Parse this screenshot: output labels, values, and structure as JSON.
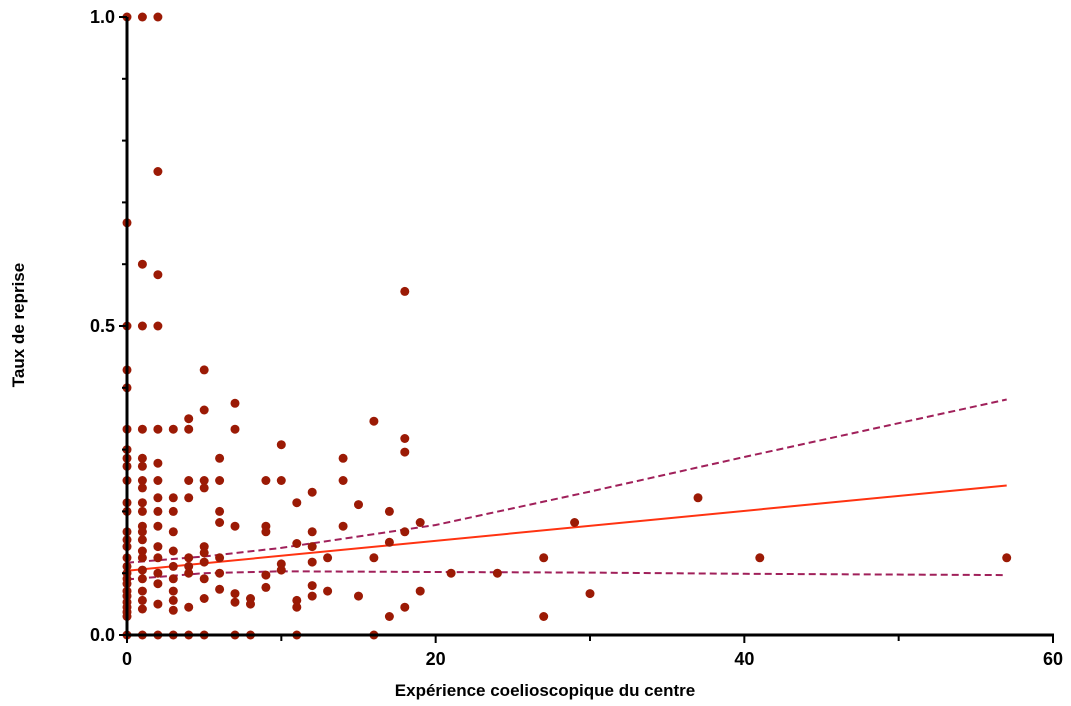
{
  "chart_data": {
    "type": "scatter",
    "title": "",
    "xlabel": "Expérience coelioscopique du centre",
    "ylabel": "Taux de reprise",
    "xlim": [
      0,
      60
    ],
    "ylim": [
      0,
      1.0
    ],
    "x_ticks": [
      "0",
      "20",
      "40",
      "60"
    ],
    "y_ticks": [
      "0.0",
      "0.5",
      "1.0"
    ],
    "grid": false,
    "legend": "none",
    "colors": {
      "points": "#9b1a05",
      "fit": "#ff3311",
      "ci": "#a0205a",
      "axis": "#000000"
    },
    "points": [
      [
        0,
        1.0
      ],
      [
        1,
        1.0
      ],
      [
        2,
        1.0
      ],
      [
        2,
        0.75
      ],
      [
        0,
        0.667
      ],
      [
        1,
        0.6
      ],
      [
        2,
        0.583
      ],
      [
        18,
        0.556
      ],
      [
        0,
        0.5
      ],
      [
        1,
        0.5
      ],
      [
        2,
        0.5
      ],
      [
        0,
        0.429
      ],
      [
        0,
        0.4
      ],
      [
        5,
        0.429
      ],
      [
        5,
        0.364
      ],
      [
        7,
        0.375
      ],
      [
        4,
        0.35
      ],
      [
        16,
        0.346
      ],
      [
        0,
        0.333
      ],
      [
        1,
        0.333
      ],
      [
        2,
        0.333
      ],
      [
        3,
        0.333
      ],
      [
        4,
        0.333
      ],
      [
        7,
        0.333
      ],
      [
        18,
        0.318
      ],
      [
        10,
        0.308
      ],
      [
        0,
        0.3
      ],
      [
        18,
        0.296
      ],
      [
        0,
        0.286
      ],
      [
        1,
        0.286
      ],
      [
        2,
        0.278
      ],
      [
        6,
        0.286
      ],
      [
        14,
        0.286
      ],
      [
        0,
        0.273
      ],
      [
        1,
        0.273
      ],
      [
        0,
        0.25
      ],
      [
        1,
        0.25
      ],
      [
        2,
        0.25
      ],
      [
        4,
        0.25
      ],
      [
        5,
        0.25
      ],
      [
        6,
        0.25
      ],
      [
        9,
        0.25
      ],
      [
        10,
        0.25
      ],
      [
        14,
        0.25
      ],
      [
        5,
        0.238
      ],
      [
        1,
        0.238
      ],
      [
        12,
        0.231
      ],
      [
        3,
        0.222
      ],
      [
        4,
        0.222
      ],
      [
        2,
        0.222
      ],
      [
        37,
        0.222
      ],
      [
        11,
        0.214
      ],
      [
        0,
        0.214
      ],
      [
        1,
        0.214
      ],
      [
        15,
        0.211
      ],
      [
        0,
        0.2
      ],
      [
        1,
        0.2
      ],
      [
        2,
        0.2
      ],
      [
        3,
        0.2
      ],
      [
        6,
        0.2
      ],
      [
        17,
        0.2
      ],
      [
        19,
        0.182
      ],
      [
        29,
        0.182
      ],
      [
        6,
        0.182
      ],
      [
        1,
        0.176
      ],
      [
        2,
        0.176
      ],
      [
        7,
        0.176
      ],
      [
        9,
        0.176
      ],
      [
        14,
        0.176
      ],
      [
        9,
        0.167
      ],
      [
        18,
        0.167
      ],
      [
        0,
        0.167
      ],
      [
        1,
        0.167
      ],
      [
        3,
        0.167
      ],
      [
        12,
        0.167
      ],
      [
        0,
        0.154
      ],
      [
        1,
        0.154
      ],
      [
        17,
        0.15
      ],
      [
        11,
        0.148
      ],
      [
        12,
        0.143
      ],
      [
        0,
        0.143
      ],
      [
        2,
        0.143
      ],
      [
        5,
        0.143
      ],
      [
        1,
        0.136
      ],
      [
        3,
        0.136
      ],
      [
        5,
        0.133
      ],
      [
        0,
        0.125
      ],
      [
        1,
        0.125
      ],
      [
        2,
        0.125
      ],
      [
        4,
        0.125
      ],
      [
        6,
        0.125
      ],
      [
        13,
        0.125
      ],
      [
        16,
        0.125
      ],
      [
        27,
        0.125
      ],
      [
        41,
        0.125
      ],
      [
        57,
        0.125
      ],
      [
        5,
        0.118
      ],
      [
        12,
        0.118
      ],
      [
        10,
        0.115
      ],
      [
        0,
        0.111
      ],
      [
        3,
        0.111
      ],
      [
        4,
        0.111
      ],
      [
        1,
        0.105
      ],
      [
        10,
        0.105
      ],
      [
        4,
        0.1
      ],
      [
        0,
        0.1
      ],
      [
        2,
        0.1
      ],
      [
        6,
        0.1
      ],
      [
        21,
        0.1
      ],
      [
        24,
        0.1
      ],
      [
        9,
        0.097
      ],
      [
        0,
        0.091
      ],
      [
        1,
        0.091
      ],
      [
        3,
        0.091
      ],
      [
        5,
        0.091
      ],
      [
        2,
        0.083
      ],
      [
        0,
        0.083
      ],
      [
        12,
        0.08
      ],
      [
        9,
        0.077
      ],
      [
        6,
        0.074
      ],
      [
        0,
        0.071
      ],
      [
        1,
        0.071
      ],
      [
        3,
        0.071
      ],
      [
        13,
        0.071
      ],
      [
        19,
        0.071
      ],
      [
        7,
        0.067
      ],
      [
        30,
        0.067
      ],
      [
        12,
        0.063
      ],
      [
        15,
        0.063
      ],
      [
        0,
        0.063
      ],
      [
        5,
        0.059
      ],
      [
        8,
        0.059
      ],
      [
        1,
        0.056
      ],
      [
        3,
        0.056
      ],
      [
        11,
        0.056
      ],
      [
        7,
        0.053
      ],
      [
        0,
        0.053
      ],
      [
        8,
        0.05
      ],
      [
        2,
        0.05
      ],
      [
        4,
        0.045
      ],
      [
        11,
        0.045
      ],
      [
        18,
        0.045
      ],
      [
        0,
        0.045
      ],
      [
        1,
        0.042
      ],
      [
        3,
        0.04
      ],
      [
        0,
        0.037
      ],
      [
        17,
        0.03
      ],
      [
        27,
        0.03
      ],
      [
        0,
        0.03
      ],
      [
        1,
        0.0
      ],
      [
        2,
        0.0
      ],
      [
        3,
        0.0
      ],
      [
        4,
        0.0
      ],
      [
        5,
        0.0
      ],
      [
        0,
        0.0
      ],
      [
        7,
        0.0
      ],
      [
        8,
        0.0
      ],
      [
        11,
        0.0
      ],
      [
        16,
        0.0
      ]
    ],
    "fit_line": {
      "x": [
        0,
        57
      ],
      "y": [
        0.104,
        0.242
      ]
    },
    "ci_upper": [
      [
        0,
        0.117
      ],
      [
        5,
        0.127
      ],
      [
        10,
        0.141
      ],
      [
        20,
        0.178
      ],
      [
        30,
        0.232
      ],
      [
        40,
        0.288
      ],
      [
        57,
        0.381
      ]
    ],
    "ci_lower": [
      [
        0,
        0.09
      ],
      [
        5,
        0.1
      ],
      [
        10,
        0.103
      ],
      [
        20,
        0.102
      ],
      [
        30,
        0.101
      ],
      [
        40,
        0.099
      ],
      [
        57,
        0.097
      ]
    ]
  }
}
